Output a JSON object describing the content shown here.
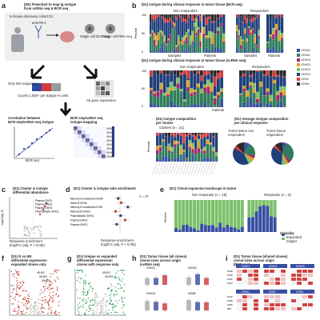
{
  "panels": {
    "a": {
      "letter": "a",
      "title_line1": "(DE) Flowchart to map Ig isotype",
      "title_line2": "from scRNA seq & BCR seq",
      "cohort": "In-house discovery cohort D1",
      "anti_pd1": "anti-PD-1",
      "pre_treatment": "Pre-treatment",
      "single_cell_bcr": "Single cell BCR seq",
      "single_cell_rna": "Single cell RNA seq",
      "only_igh_sequences": "Only IGH sequences",
      "ab_gene_expression": "Ab gene expression",
      "counts_left": "Counts 1,000+ per isotype % cells",
      "counts_right": "Counts 10+ per isotype 30k cells",
      "correlation_line1": "Correlation between",
      "correlation_line2": "BCR-seq/scRNA-seq isotype",
      "mapping_line1": "BCR seq/scRNA seq",
      "mapping_line2": "isotype mapping",
      "xlabel": "BCR seq",
      "ylabel": "scRNA seq",
      "isotypes": [
        "IGHM",
        "IGHD",
        "IGHG1",
        "IGHG2",
        "IGHG3",
        "IGHG4",
        "IGHA1",
        "IGHA2"
      ]
    },
    "b": {
      "letter": "b",
      "title_top": "(D1) Isotype during clinical response in tumor tissue (BCR seq)",
      "non_responders": "Non responders",
      "responders": "Responders",
      "samples": "Samples",
      "patients": "Patients",
      "title_mid": "(D1) Isotype during clinical response in tumor tissue (scRNA seq)",
      "ylabel": "Percent",
      "legend": [
        {
          "name": "IGHA2",
          "color": "#3a4fa3"
        },
        {
          "name": "IGHA1",
          "color": "#2f7d5a"
        },
        {
          "name": "IGHG4",
          "color": "#a12a6e"
        },
        {
          "name": "IGHG3",
          "color": "#e0a12a"
        },
        {
          "name": "IGHG2",
          "color": "#7cc06a"
        },
        {
          "name": "IGHG1",
          "color": "#1f3f7a"
        },
        {
          "name": "IGHD",
          "color": "#d73a3a"
        },
        {
          "name": "IGHM",
          "color": "#2a2a2a"
        }
      ],
      "composition_title_line1": "(D1) Isotype composition",
      "composition_title_line2": "per cluster",
      "clusters_label": "Clusters (n = 21)",
      "pie_title_line1": "(D1) Average isotype composition",
      "pie_title_line2": "per clinical response",
      "pie_nonresp": "Tumor tissue non responders",
      "pie_resp": "Tumor tissue responders"
    },
    "c": {
      "letter": "c",
      "title_line1": "(D1) Cluster & isotype",
      "title_line2": "differential abundance",
      "ylabel": "-log10(adj. P)",
      "xlabel_line1": "Response enrichment",
      "xlabel_line2": "(log2FC (adj. P < 0.05))",
      "labels": [
        "Plasma IGHG1",
        "Plasma IGHG2",
        "Plasma IGHG3",
        "Plasmablasts IGHG1"
      ]
    },
    "d": {
      "letter": "d",
      "title": "(D1) Cluster & isotype ratio enrichment",
      "n_label": "n = 27",
      "rows": [
        "Memory B unswitched IGHM",
        "Naive B IGHM",
        "Memory B unswitched IGHD",
        "Memory B IGHG1",
        "Plasmablasts IGHG1",
        "Plasma IGHG1",
        "Plasma IGHG2"
      ],
      "xlabel_line1": "Response enrichment",
      "xlabel_line2": "(log2FC (adj. P < 0.05))"
    },
    "e": {
      "letter": "e",
      "title": "(D1) Clonal expansion landscape in tumor",
      "non_responder": "Non responder (n = 19)",
      "responder": "Responder (n = 8)",
      "ylabel": "Percent",
      "clonality_label": "Clonality",
      "expanded": "Expanded",
      "singlet": "Singlet"
    },
    "f": {
      "letter": "f",
      "title_line1": "(D1) R vs NR",
      "title_line2": "differential expression",
      "title_line3": "expanded clones only",
      "ylabel": "-log10(adj. P)",
      "genes": [
        "IGHG1",
        "IGHG2",
        "IGHG3"
      ]
    },
    "g": {
      "letter": "g",
      "title_line1": "(D1) Unique vs expanded",
      "title_line2": "differential expression",
      "title_line3": "clones with response only",
      "ylabel": "-log10(adj. P)",
      "genes": [
        "IGHG1",
        "IGHG3"
      ]
    },
    "h": {
      "letter": "h",
      "title_line1": "(D1) Tumor tissue (all clones)",
      "title_line2": "clonal sizes across origin",
      "title_line3": "(scRNA seq)",
      "genes": [
        "IGHG1",
        "IGHG2",
        "IGHG3",
        "IGHM"
      ],
      "ylabel": "Clone size (log)"
    },
    "i": {
      "letter": "i",
      "title_line1": "(D1) Tumor tissue (shared clones)",
      "title_line2": "clonal sizes across origin",
      "title_line3": "(BCR seq)",
      "genes": [
        "IGHG1",
        "IGHG2",
        "IGHG3",
        "IGHA1",
        "IGHD",
        "IGHM"
      ],
      "yvals": [
        "1048",
        "1040",
        "1032",
        "1024",
        "1016",
        "1008",
        "1000",
        "992"
      ]
    }
  }
}
